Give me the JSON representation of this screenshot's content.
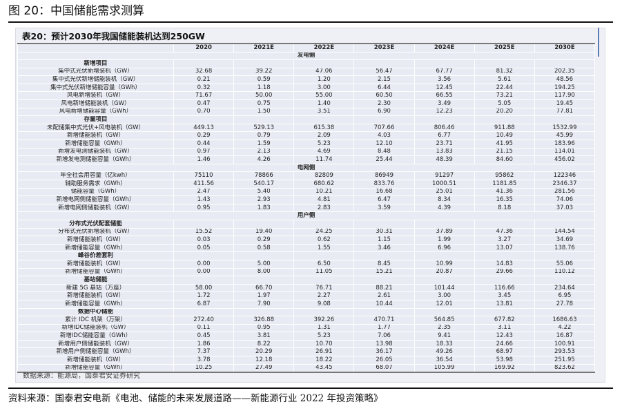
{
  "figure_title": "图 20：中国储能需求测算",
  "table_title": "表20：预计2030年我国储能装机达到250GW",
  "columns": [
    "",
    "2020",
    "2021E",
    "2022E",
    "2023E",
    "2024E",
    "2025E",
    "2030E"
  ],
  "rows": [
    {
      "type": "section",
      "label": "发电侧"
    },
    {
      "type": "sub",
      "label": "新增项目"
    },
    {
      "label": "集中式光伏新增装机（GW）",
      "values": [
        "32.68",
        "39.22",
        "47.06",
        "56.47",
        "67.77",
        "81.32",
        "202.35"
      ]
    },
    {
      "label": "集中式光伏新增储能装机（GW）",
      "values": [
        "0.21",
        "0.59",
        "1.20",
        "2.15",
        "3.56",
        "5.61",
        "48.56"
      ]
    },
    {
      "label": "集中式光伏新增储能容量（GWh）",
      "values": [
        "0.32",
        "1.18",
        "3.00",
        "6.44",
        "12.45",
        "22.44",
        "194.25"
      ]
    },
    {
      "label": "风电新增装机（GW）",
      "values": [
        "71.67",
        "50.00",
        "55.00",
        "60.50",
        "66.55",
        "73.21",
        "117.90"
      ]
    },
    {
      "label": "风电新增储能装机（GW）",
      "values": [
        "0.47",
        "0.75",
        "1.40",
        "2.30",
        "3.49",
        "5.05",
        "19.45"
      ]
    },
    {
      "label": "风电新增储能容量（GWh）",
      "values": [
        "0.70",
        "1.50",
        "3.51",
        "6.90",
        "12.23",
        "20.20",
        "77.81"
      ]
    },
    {
      "type": "sub",
      "label": "存量项目"
    },
    {
      "label": "未配储集中式光伏+风电装机（GW）",
      "values": [
        "449.13",
        "529.13",
        "615.38",
        "707.66",
        "806.46",
        "911.88",
        "1532.99"
      ]
    },
    {
      "label": "新增储能装机（GW）",
      "values": [
        "0.29",
        "0.79",
        "2.09",
        "4.03",
        "6.77",
        "10.49",
        "45.99"
      ]
    },
    {
      "label": "新增储能容量（GWh）",
      "values": [
        "0.44",
        "1.59",
        "5.23",
        "12.10",
        "23.71",
        "41.95",
        "183.96"
      ]
    },
    {
      "label": "新增发电测储能装机（GW）",
      "values": [
        "0.97",
        "2.13",
        "4.69",
        "8.48",
        "13.83",
        "21.15",
        "114.01"
      ]
    },
    {
      "label": "新增发电测储能容量（GWh）",
      "values": [
        "1.46",
        "4.26",
        "11.74",
        "25.44",
        "48.39",
        "84.60",
        "456.02"
      ]
    },
    {
      "type": "section",
      "label": "电网侧"
    },
    {
      "label": "年全社会用容量（亿kwh）",
      "values": [
        "75110",
        "78866",
        "82809",
        "86949",
        "91297",
        "95862",
        "122346"
      ]
    },
    {
      "label": "辅助服务需求（GWh）",
      "values": [
        "411.56",
        "540.17",
        "680.62",
        "833.76",
        "1000.51",
        "1181.85",
        "2346.37"
      ]
    },
    {
      "label": "储能容量（GWh）",
      "values": [
        "2.47",
        "5.40",
        "10.21",
        "16.68",
        "25.01",
        "41.36",
        "281.56"
      ]
    },
    {
      "label": "新增电网侧储能容量（GWh）",
      "values": [
        "1.43",
        "2.93",
        "4.81",
        "6.47",
        "8.34",
        "16.35",
        "74.06"
      ]
    },
    {
      "label": "新增电网侧储能装机（GW）",
      "values": [
        "0.95",
        "1.83",
        "2.83",
        "3.59",
        "4.39",
        "8.18",
        "37.03"
      ]
    },
    {
      "type": "section",
      "label": "用户侧"
    },
    {
      "type": "sub",
      "label": "分布式光伏配套储能"
    },
    {
      "label": "分布式光伏新增装机（GW）",
      "values": [
        "15.52",
        "19.40",
        "24.25",
        "30.31",
        "37.89",
        "47.36",
        "144.54"
      ]
    },
    {
      "label": "新增储能装机（GW）",
      "values": [
        "0.03",
        "0.29",
        "0.62",
        "1.15",
        "1.99",
        "3.27",
        "34.69"
      ]
    },
    {
      "label": "新增储能容量（GWh）",
      "values": [
        "0.05",
        "0.58",
        "1.55",
        "3.46",
        "6.96",
        "13.07",
        "138.76"
      ]
    },
    {
      "type": "sub",
      "label": "峰谷价差套利"
    },
    {
      "label": "新增储能装机（GW）",
      "values": [
        "0.00",
        "5.00",
        "6.50",
        "8.45",
        "10.99",
        "14.83",
        "55.06"
      ]
    },
    {
      "label": "新增储能容量（GWh）",
      "values": [
        "0.00",
        "8.00",
        "11.05",
        "15.21",
        "20.87",
        "29.66",
        "110.12"
      ]
    },
    {
      "type": "sub",
      "label": "基站储能"
    },
    {
      "label": "新建 5G 基站（万座）",
      "values": [
        "58.00",
        "66.70",
        "76.71",
        "88.21",
        "101.44",
        "116.66",
        "234.64"
      ]
    },
    {
      "label": "新增储能装机（GW）",
      "values": [
        "1.72",
        "1.97",
        "2.27",
        "2.61",
        "3.00",
        "3.45",
        "6.95"
      ]
    },
    {
      "label": "新增储能容量（GWh）",
      "values": [
        "6.87",
        "7.90",
        "9.08",
        "10.44",
        "12.01",
        "13.81",
        "27.78"
      ]
    },
    {
      "type": "sub",
      "label": "数据中心储能"
    },
    {
      "label": "累计 IDC 机架（万架）",
      "values": [
        "272.40",
        "326.88",
        "392.26",
        "470.71",
        "564.85",
        "677.82",
        "1686.63"
      ]
    },
    {
      "label": "新增IDC储能装机（GW）",
      "values": [
        "0.11",
        "0.95",
        "1.31",
        "1.77",
        "2.35",
        "3.11",
        "4.22"
      ]
    },
    {
      "label": "新增IDC储能容量（GWh）",
      "values": [
        "0.45",
        "3.81",
        "5.23",
        "7.06",
        "9.41",
        "12.43",
        "16.87"
      ]
    },
    {
      "label": "新增用户侧储能装机（GW）",
      "values": [
        "1.86",
        "8.22",
        "10.70",
        "13.98",
        "18.33",
        "24.66",
        "100.91"
      ]
    },
    {
      "label": "新增用户侧储能容量（GWh）",
      "values": [
        "7.37",
        "20.29",
        "26.91",
        "36.17",
        "49.26",
        "68.97",
        "293.53"
      ]
    },
    {
      "label": "新增储能装机（GW）",
      "values": [
        "3.78",
        "12.18",
        "18.22",
        "26.05",
        "36.54",
        "53.98",
        "251.95"
      ]
    },
    {
      "label": "新增储能容量（GWh）",
      "values": [
        "10.25",
        "27.49",
        "43.45",
        "68.07",
        "105.99",
        "169.92",
        "823.62"
      ]
    }
  ],
  "table_source": "数据来源：能源局，国泰君安证券研究",
  "footer_source": "资料来源：国泰君安电新《电池、储能的未来发展道路——新能源行业 2022 年投资策略》"
}
